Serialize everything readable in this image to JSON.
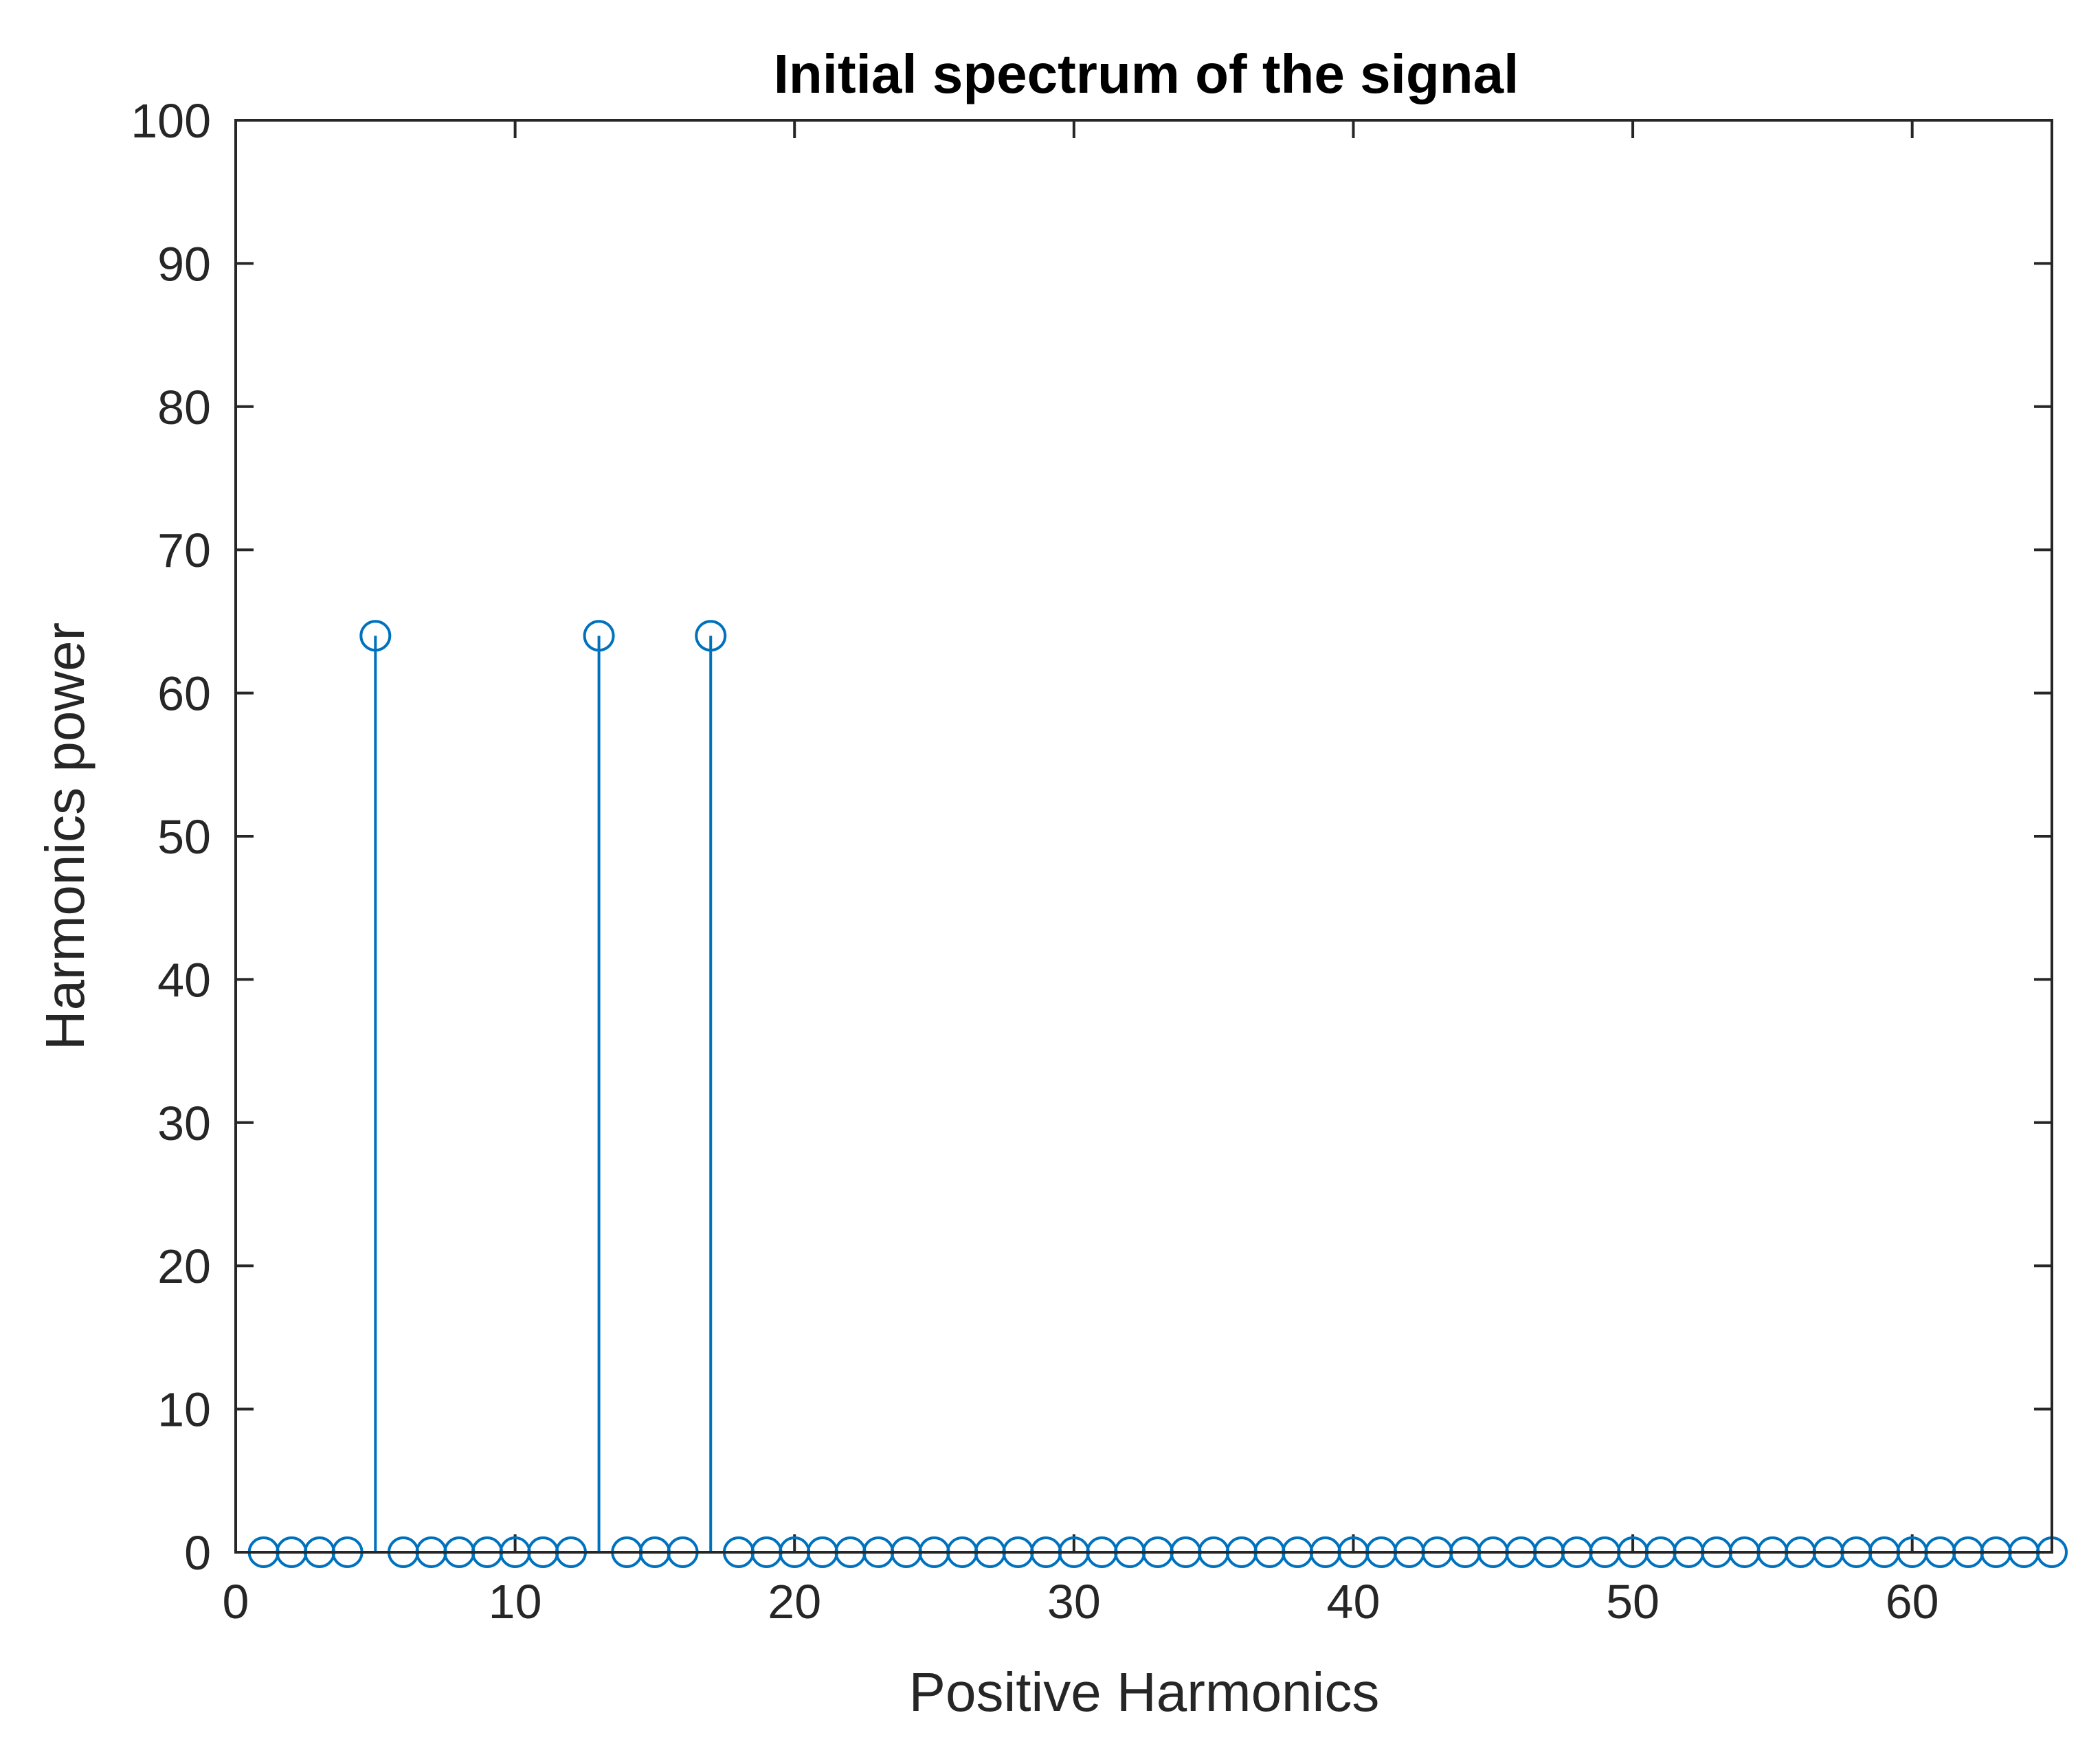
{
  "chart_data": {
    "type": "stem",
    "title": "Initial spectrum of the signal",
    "xlabel": "Positive Harmonics",
    "ylabel": "Harmonics power",
    "xlim": [
      0,
      65
    ],
    "ylim": [
      0,
      100
    ],
    "xticks": [
      0,
      10,
      20,
      30,
      40,
      50,
      60
    ],
    "yticks": [
      0,
      10,
      20,
      30,
      40,
      50,
      60,
      70,
      80,
      90,
      100
    ],
    "grid": false,
    "color": "#0072bd",
    "x": [
      1,
      2,
      3,
      4,
      5,
      6,
      7,
      8,
      9,
      10,
      11,
      12,
      13,
      14,
      15,
      16,
      17,
      18,
      19,
      20,
      21,
      22,
      23,
      24,
      25,
      26,
      27,
      28,
      29,
      30,
      31,
      32,
      33,
      34,
      35,
      36,
      37,
      38,
      39,
      40,
      41,
      42,
      43,
      44,
      45,
      46,
      47,
      48,
      49,
      50,
      51,
      52,
      53,
      54,
      55,
      56,
      57,
      58,
      59,
      60,
      61,
      62,
      63,
      64,
      65
    ],
    "values": [
      0,
      0,
      0,
      0,
      64,
      0,
      0,
      0,
      0,
      0,
      0,
      0,
      64,
      0,
      0,
      0,
      64,
      0,
      0,
      0,
      0,
      0,
      0,
      0,
      0,
      0,
      0,
      0,
      0,
      0,
      0,
      0,
      0,
      0,
      0,
      0,
      0,
      0,
      0,
      0,
      0,
      0,
      0,
      0,
      0,
      0,
      0,
      0,
      0,
      0,
      0,
      0,
      0,
      0,
      0,
      0,
      0,
      0,
      0,
      0,
      0,
      0,
      0,
      0,
      0
    ]
  }
}
